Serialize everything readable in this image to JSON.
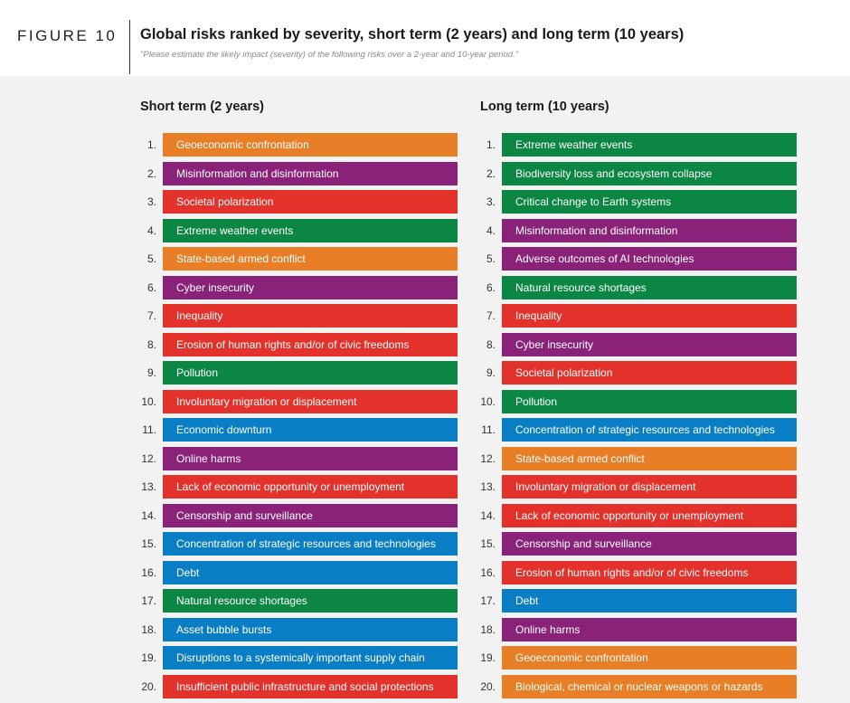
{
  "figure_label": "FIGURE 10",
  "title": "Global risks ranked by severity, short term (2 years) and long term (10 years)",
  "subtitle": "\"Please estimate the likely impact (severity) of the following risks over a 2-year and 10-year period.\"",
  "colors": {
    "economic": "#e87f27",
    "technological": "#8a2279",
    "societal": "#e3322b",
    "environmental": "#0c8743",
    "geopolitical": "#0a7ec4"
  },
  "chart_data": {
    "type": "table",
    "columns": [
      {
        "heading": "Short term (2 years)",
        "rows": [
          {
            "rank": "1.",
            "label": "Geoeconomic confrontation",
            "category": "economic"
          },
          {
            "rank": "2.",
            "label": "Misinformation and disinformation",
            "category": "technological"
          },
          {
            "rank": "3.",
            "label": "Societal polarization",
            "category": "societal"
          },
          {
            "rank": "4.",
            "label": "Extreme weather events",
            "category": "environmental"
          },
          {
            "rank": "5.",
            "label": "State-based armed conflict",
            "category": "economic"
          },
          {
            "rank": "6.",
            "label": "Cyber insecurity",
            "category": "technological"
          },
          {
            "rank": "7.",
            "label": "Inequality",
            "category": "societal"
          },
          {
            "rank": "8.",
            "label": "Erosion of human rights and/or of civic freedoms",
            "category": "societal"
          },
          {
            "rank": "9.",
            "label": "Pollution",
            "category": "environmental"
          },
          {
            "rank": "10.",
            "label": "Involuntary migration or displacement",
            "category": "societal"
          },
          {
            "rank": "11.",
            "label": "Economic downturn",
            "category": "geopolitical"
          },
          {
            "rank": "12.",
            "label": "Online harms",
            "category": "technological"
          },
          {
            "rank": "13.",
            "label": "Lack of economic opportunity or unemployment",
            "category": "societal"
          },
          {
            "rank": "14.",
            "label": "Censorship and surveillance",
            "category": "technological"
          },
          {
            "rank": "15.",
            "label": "Concentration of strategic resources and technologies",
            "category": "geopolitical"
          },
          {
            "rank": "16.",
            "label": "Debt",
            "category": "geopolitical"
          },
          {
            "rank": "17.",
            "label": "Natural resource shortages",
            "category": "environmental"
          },
          {
            "rank": "18.",
            "label": "Asset bubble bursts",
            "category": "geopolitical"
          },
          {
            "rank": "19.",
            "label": "Disruptions to a systemically important supply chain",
            "category": "geopolitical"
          },
          {
            "rank": "20.",
            "label": "Insufficient public infrastructure and social protections",
            "category": "societal"
          }
        ]
      },
      {
        "heading": "Long term (10 years)",
        "rows": [
          {
            "rank": "1.",
            "label": "Extreme weather events",
            "category": "environmental"
          },
          {
            "rank": "2.",
            "label": "Biodiversity loss and ecosystem collapse",
            "category": "environmental"
          },
          {
            "rank": "3.",
            "label": "Critical change to Earth systems",
            "category": "environmental"
          },
          {
            "rank": "4.",
            "label": "Misinformation and disinformation",
            "category": "technological"
          },
          {
            "rank": "5.",
            "label": "Adverse outcomes of AI technologies",
            "category": "technological"
          },
          {
            "rank": "6.",
            "label": "Natural resource shortages",
            "category": "environmental"
          },
          {
            "rank": "7.",
            "label": "Inequality",
            "category": "societal"
          },
          {
            "rank": "8.",
            "label": "Cyber insecurity",
            "category": "technological"
          },
          {
            "rank": "9.",
            "label": "Societal polarization",
            "category": "societal"
          },
          {
            "rank": "10.",
            "label": "Pollution",
            "category": "environmental"
          },
          {
            "rank": "11.",
            "label": "Concentration of strategic resources and technologies",
            "category": "geopolitical"
          },
          {
            "rank": "12.",
            "label": "State-based armed conflict",
            "category": "economic"
          },
          {
            "rank": "13.",
            "label": "Involuntary migration or displacement",
            "category": "societal"
          },
          {
            "rank": "14.",
            "label": "Lack of economic opportunity or unemployment",
            "category": "societal"
          },
          {
            "rank": "15.",
            "label": "Censorship and surveillance",
            "category": "technological"
          },
          {
            "rank": "16.",
            "label": "Erosion of human rights and/or of civic freedoms",
            "category": "societal"
          },
          {
            "rank": "17.",
            "label": "Debt",
            "category": "geopolitical"
          },
          {
            "rank": "18.",
            "label": "Online harms",
            "category": "technological"
          },
          {
            "rank": "19.",
            "label": "Geoeconomic confrontation",
            "category": "economic"
          },
          {
            "rank": "20.",
            "label": "Biological, chemical or nuclear weapons or hazards",
            "category": "economic"
          }
        ]
      }
    ]
  }
}
